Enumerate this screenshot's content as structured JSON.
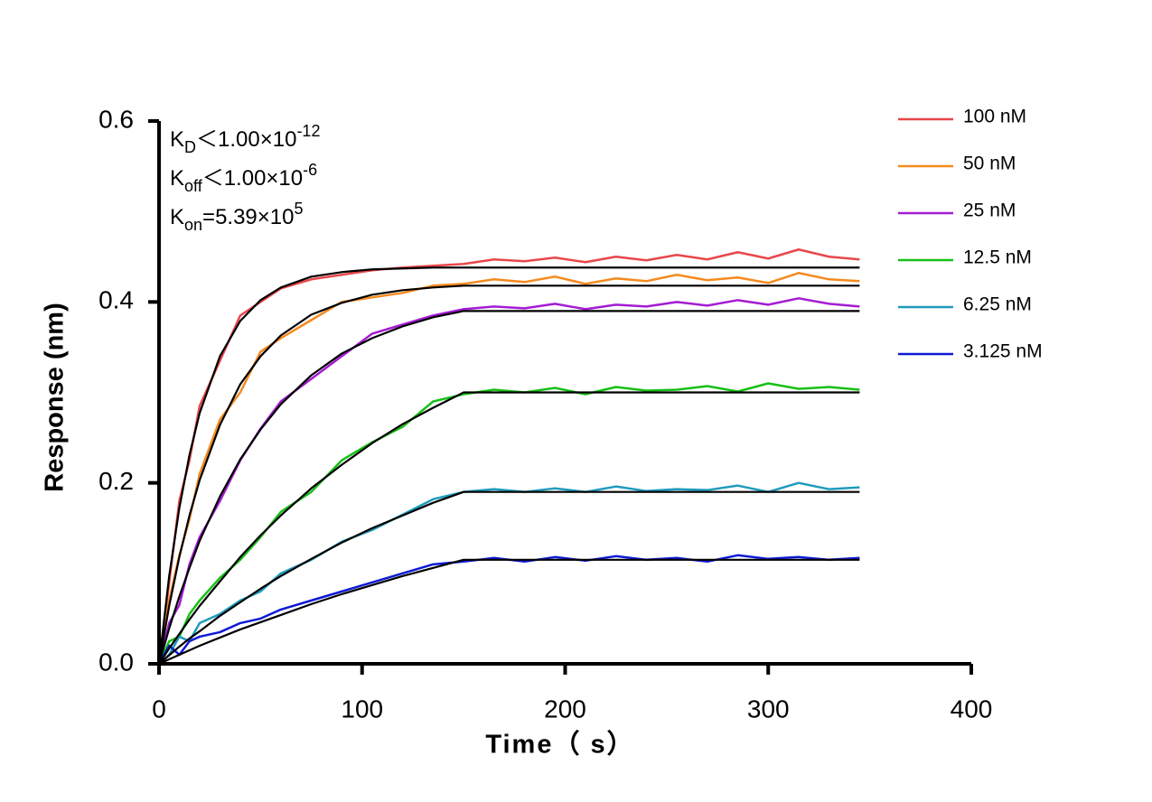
{
  "chart_data": {
    "type": "line",
    "x_label": "Time（ s）",
    "y_label": "Response (nm)",
    "xlim": [
      0,
      400
    ],
    "xticks": [
      0,
      100,
      200,
      300,
      400
    ],
    "ylim": [
      0,
      0.6
    ],
    "yticks": [
      {
        "value": 0,
        "label": "0.0"
      },
      {
        "value": 0.2,
        "label": "0.2"
      },
      {
        "value": 0.4,
        "label": "0.4"
      },
      {
        "value": 0.6,
        "label": "0.6"
      }
    ],
    "grid": false,
    "legend": "top-right",
    "annotations": [
      {
        "symbol": "K",
        "subscript": "D",
        "text": "＜1.00×10",
        "superscript": "-12"
      },
      {
        "symbol": "K",
        "subscript": "off",
        "text": "＜1.00×10",
        "superscript": "-6"
      },
      {
        "symbol": "K",
        "subscript": "on",
        "text": "=5.39×10",
        "superscript": "5"
      }
    ],
    "x": [
      0,
      5,
      10,
      15,
      20,
      30,
      40,
      50,
      60,
      75,
      90,
      105,
      120,
      135,
      150,
      165,
      180,
      195,
      210,
      225,
      240,
      255,
      270,
      285,
      300,
      315,
      330,
      345
    ],
    "series": [
      {
        "name": "100 nM",
        "color": "#e8474a",
        "values": [
          0,
          0.09,
          0.18,
          0.225,
          0.285,
          0.335,
          0.385,
          0.4,
          0.415,
          0.425,
          0.43,
          0.435,
          0.438,
          0.44,
          0.442,
          0.447,
          0.445,
          0.449,
          0.444,
          0.45,
          0.446,
          0.452,
          0.447,
          0.455,
          0.448,
          0.458,
          0.45,
          0.447
        ]
      },
      {
        "name": "50 nM",
        "color": "#f58a1f",
        "values": [
          0,
          0.07,
          0.12,
          0.16,
          0.21,
          0.27,
          0.3,
          0.345,
          0.36,
          0.38,
          0.4,
          0.405,
          0.41,
          0.418,
          0.42,
          0.425,
          0.422,
          0.428,
          0.42,
          0.426,
          0.423,
          0.43,
          0.424,
          0.427,
          0.421,
          0.432,
          0.425,
          0.423
        ]
      },
      {
        "name": "25 nM",
        "color": "#a51bd4",
        "values": [
          0,
          0.045,
          0.065,
          0.11,
          0.14,
          0.18,
          0.225,
          0.26,
          0.29,
          0.315,
          0.34,
          0.365,
          0.375,
          0.385,
          0.392,
          0.395,
          0.393,
          0.398,
          0.392,
          0.397,
          0.395,
          0.4,
          0.396,
          0.402,
          0.397,
          0.404,
          0.398,
          0.395
        ]
      },
      {
        "name": "12.5 nM",
        "color": "#17c017",
        "values": [
          0,
          0.025,
          0.03,
          0.055,
          0.07,
          0.095,
          0.115,
          0.14,
          0.168,
          0.19,
          0.225,
          0.245,
          0.262,
          0.29,
          0.298,
          0.303,
          0.3,
          0.305,
          0.298,
          0.306,
          0.302,
          0.303,
          0.307,
          0.301,
          0.31,
          0.304,
          0.306,
          0.303
        ]
      },
      {
        "name": "6.25 nM",
        "color": "#1f9bbd",
        "values": [
          0,
          0.01,
          0.03,
          0.025,
          0.045,
          0.055,
          0.07,
          0.08,
          0.1,
          0.115,
          0.135,
          0.148,
          0.165,
          0.182,
          0.19,
          0.193,
          0.19,
          0.194,
          0.19,
          0.196,
          0.191,
          0.193,
          0.192,
          0.197,
          0.19,
          0.2,
          0.193,
          0.195
        ]
      },
      {
        "name": "3.125 nM",
        "color": "#0d1ad4",
        "values": [
          0,
          0.02,
          0.01,
          0.025,
          0.03,
          0.035,
          0.045,
          0.05,
          0.06,
          0.07,
          0.08,
          0.09,
          0.1,
          0.11,
          0.113,
          0.117,
          0.113,
          0.118,
          0.114,
          0.119,
          0.115,
          0.117,
          0.113,
          0.12,
          0.116,
          0.118,
          0.115,
          0.117
        ]
      }
    ],
    "fits": [
      {
        "color": "#000000",
        "values": [
          0,
          0.097,
          0.172,
          0.231,
          0.277,
          0.34,
          0.379,
          0.402,
          0.416,
          0.428,
          0.433,
          0.436,
          0.437,
          0.438,
          0.438,
          0.438,
          0.438,
          0.438,
          0.438,
          0.438,
          0.438,
          0.438,
          0.438,
          0.438,
          0.438,
          0.438,
          0.438,
          0.438
        ]
      },
      {
        "color": "#000000",
        "values": [
          0,
          0.064,
          0.118,
          0.164,
          0.203,
          0.264,
          0.309,
          0.34,
          0.363,
          0.386,
          0.399,
          0.408,
          0.413,
          0.416,
          0.418,
          0.418,
          0.418,
          0.418,
          0.418,
          0.418,
          0.418,
          0.418,
          0.418,
          0.418,
          0.418,
          0.418,
          0.418,
          0.418
        ]
      },
      {
        "color": "#000000",
        "values": [
          0,
          0.039,
          0.0744,
          0.106,
          0.136,
          0.185,
          0.226,
          0.259,
          0.287,
          0.319,
          0.343,
          0.36,
          0.373,
          0.383,
          0.39,
          0.39,
          0.39,
          0.39,
          0.39,
          0.39,
          0.39,
          0.39,
          0.39,
          0.39,
          0.39,
          0.39,
          0.39,
          0.39
        ]
      },
      {
        "color": "#000000",
        "values": [
          0,
          0.017,
          0.033,
          0.049,
          0.064,
          0.091,
          0.118,
          0.142,
          0.164,
          0.194,
          0.22,
          0.244,
          0.265,
          0.283,
          0.3,
          0.3,
          0.3,
          0.3,
          0.3,
          0.3,
          0.3,
          0.3,
          0.3,
          0.3,
          0.3,
          0.3,
          0.3,
          0.3
        ]
      },
      {
        "color": "#000000",
        "values": [
          0,
          0.0095,
          0.019,
          0.028,
          0.036,
          0.053,
          0.068,
          0.083,
          0.097,
          0.116,
          0.134,
          0.15,
          0.164,
          0.178,
          0.19,
          0.19,
          0.19,
          0.19,
          0.19,
          0.19,
          0.19,
          0.19,
          0.19,
          0.19,
          0.19,
          0.19,
          0.19,
          0.19
        ]
      },
      {
        "color": "#000000",
        "values": [
          0,
          0.005,
          0.01,
          0.015,
          0.02,
          0.029,
          0.038,
          0.046,
          0.054,
          0.066,
          0.077,
          0.087,
          0.097,
          0.106,
          0.115,
          0.115,
          0.115,
          0.115,
          0.115,
          0.115,
          0.115,
          0.115,
          0.115,
          0.115,
          0.115,
          0.115,
          0.115,
          0.115
        ]
      }
    ]
  }
}
